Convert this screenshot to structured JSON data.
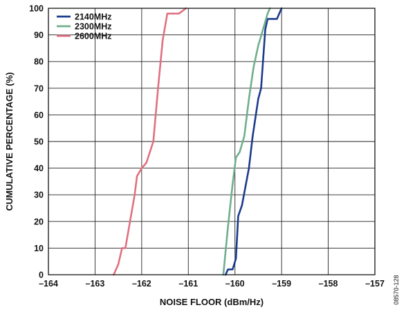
{
  "chart_data": {
    "type": "line",
    "title": "",
    "xlabel": "NOISE FLOOR (dBm/Hz)",
    "ylabel": "CUMULATIVE PERCENTAGE (%)",
    "xlim": [
      -164,
      -157
    ],
    "ylim": [
      0,
      100
    ],
    "xticks": [
      -164,
      -163,
      -162,
      -161,
      -160,
      -159,
      -158,
      -157
    ],
    "xtick_labels": [
      "–164",
      "–163",
      "–162",
      "–161",
      "–160",
      "–159",
      "–158",
      "–157"
    ],
    "yticks": [
      0,
      10,
      20,
      30,
      40,
      50,
      60,
      70,
      80,
      90,
      100
    ],
    "ytick_labels": [
      "0",
      "10",
      "20",
      "30",
      "40",
      "50",
      "60",
      "70",
      "80",
      "90",
      "100"
    ],
    "grid": true,
    "legend_position": "top-left",
    "figure_id": "08570-128",
    "series": [
      {
        "name": "2140MHz",
        "color": "#1b3a8c",
        "points": [
          [
            -160.2,
            0
          ],
          [
            -160.15,
            2
          ],
          [
            -160.05,
            2
          ],
          [
            -159.98,
            6
          ],
          [
            -159.93,
            22
          ],
          [
            -159.85,
            26
          ],
          [
            -159.7,
            40
          ],
          [
            -159.62,
            52
          ],
          [
            -159.5,
            66
          ],
          [
            -159.44,
            70
          ],
          [
            -159.35,
            92
          ],
          [
            -159.3,
            96
          ],
          [
            -159.1,
            96
          ],
          [
            -159.0,
            100
          ]
        ]
      },
      {
        "name": "2300MHz",
        "color": "#6fae8e",
        "points": [
          [
            -160.25,
            0
          ],
          [
            -160.15,
            18
          ],
          [
            -160.05,
            34
          ],
          [
            -159.98,
            44
          ],
          [
            -159.9,
            46
          ],
          [
            -159.8,
            52
          ],
          [
            -159.7,
            66
          ],
          [
            -159.6,
            78
          ],
          [
            -159.5,
            86
          ],
          [
            -159.4,
            92
          ],
          [
            -159.3,
            98
          ],
          [
            -159.25,
            100
          ]
        ]
      },
      {
        "name": "2600MHz",
        "color": "#e07080",
        "points": [
          [
            -162.6,
            0
          ],
          [
            -162.5,
            4
          ],
          [
            -162.42,
            10
          ],
          [
            -162.35,
            10
          ],
          [
            -162.15,
            30
          ],
          [
            -162.1,
            37
          ],
          [
            -162.0,
            40
          ],
          [
            -161.9,
            42
          ],
          [
            -161.75,
            50
          ],
          [
            -161.65,
            70
          ],
          [
            -161.55,
            88
          ],
          [
            -161.45,
            98
          ],
          [
            -161.2,
            98
          ],
          [
            -161.05,
            100
          ]
        ]
      }
    ]
  }
}
